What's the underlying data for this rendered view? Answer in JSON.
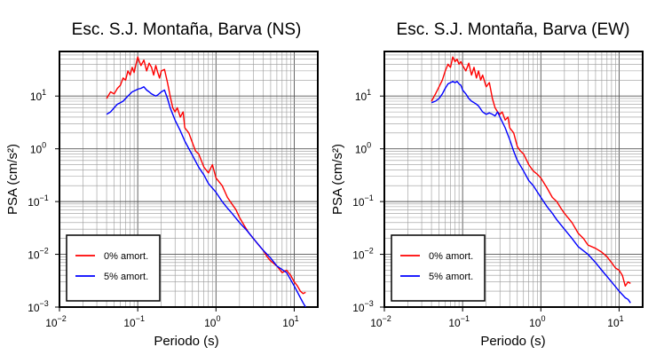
{
  "chart_data": [
    {
      "type": "line",
      "title": "Esc. S.J. Montaña, Barva (NS)",
      "xlabel": "Periodo (s)",
      "ylabel": "PSA (cm/s²)",
      "xscale": "log",
      "yscale": "log",
      "xlim": [
        0.01,
        20
      ],
      "ylim": [
        0.001,
        70
      ],
      "x_ticks": [
        {
          "base": "10",
          "exp": "−2",
          "value": 0.01
        },
        {
          "base": "10",
          "exp": "−1",
          "value": 0.1
        },
        {
          "base": "10",
          "exp": "0",
          "value": 1
        },
        {
          "base": "10",
          "exp": "1",
          "value": 10
        }
      ],
      "y_ticks": [
        {
          "base": "10",
          "exp": "−3",
          "value": 0.001
        },
        {
          "base": "10",
          "exp": "−2",
          "value": 0.01
        },
        {
          "base": "10",
          "exp": "−1",
          "value": 0.1
        },
        {
          "base": "10",
          "exp": "0",
          "value": 1
        },
        {
          "base": "10",
          "exp": "1",
          "value": 10
        }
      ],
      "grid": true,
      "legend_position": "bottom-left",
      "series": [
        {
          "name": "0% amort.",
          "color": "#ff0000",
          "x": [
            0.04,
            0.045,
            0.05,
            0.055,
            0.06,
            0.065,
            0.07,
            0.075,
            0.08,
            0.085,
            0.09,
            0.095,
            0.1,
            0.105,
            0.11,
            0.12,
            0.13,
            0.14,
            0.15,
            0.16,
            0.17,
            0.18,
            0.19,
            0.2,
            0.22,
            0.24,
            0.26,
            0.28,
            0.3,
            0.32,
            0.35,
            0.38,
            0.4,
            0.45,
            0.5,
            0.55,
            0.6,
            0.7,
            0.8,
            0.9,
            1.0,
            1.2,
            1.4,
            1.6,
            1.8,
            2.0,
            2.3,
            2.6,
            3.0,
            3.5,
            4.0,
            4.5,
            5.0,
            6.0,
            7.0,
            8.0,
            9.0,
            10.0,
            11.0,
            12.0,
            13.0,
            14.0
          ],
          "y": [
            9,
            12,
            11,
            14,
            16,
            22,
            20,
            30,
            25,
            35,
            28,
            40,
            55,
            45,
            38,
            48,
            30,
            42,
            35,
            25,
            38,
            28,
            22,
            30,
            32,
            18,
            10,
            6,
            5,
            6,
            4,
            5,
            2.5,
            2.0,
            1.3,
            0.9,
            0.8,
            0.45,
            0.35,
            0.5,
            0.28,
            0.2,
            0.12,
            0.09,
            0.07,
            0.05,
            0.035,
            0.026,
            0.02,
            0.015,
            0.012,
            0.009,
            0.0075,
            0.006,
            0.0045,
            0.005,
            0.004,
            0.003,
            0.0025,
            0.002,
            0.0018,
            0.0019
          ]
        },
        {
          "name": "5% amort.",
          "color": "#0000ff",
          "x": [
            0.04,
            0.045,
            0.05,
            0.055,
            0.06,
            0.065,
            0.07,
            0.075,
            0.08,
            0.085,
            0.09,
            0.095,
            0.1,
            0.11,
            0.12,
            0.13,
            0.14,
            0.15,
            0.16,
            0.17,
            0.18,
            0.2,
            0.22,
            0.24,
            0.26,
            0.28,
            0.3,
            0.35,
            0.4,
            0.5,
            0.6,
            0.7,
            0.8,
            1.0,
            1.2,
            1.4,
            1.6,
            2.0,
            2.5,
            3.0,
            4.0,
            5.0,
            6.0,
            8.0,
            10.0,
            12.0,
            13.0,
            14.0
          ],
          "y": [
            4.5,
            5,
            6,
            7,
            7.5,
            8,
            9,
            10,
            11,
            12,
            12.5,
            13,
            13.5,
            14,
            15,
            13,
            12,
            11,
            10.5,
            10,
            10.5,
            12,
            13,
            9,
            6,
            4.5,
            3.5,
            2.2,
            1.4,
            0.75,
            0.45,
            0.32,
            0.22,
            0.15,
            0.1,
            0.075,
            0.06,
            0.04,
            0.028,
            0.02,
            0.012,
            0.0085,
            0.006,
            0.0045,
            0.0025,
            0.0015,
            0.0012,
            0.001
          ]
        }
      ]
    },
    {
      "type": "line",
      "title": "Esc. S.J. Montaña, Barva (EW)",
      "xlabel": "Periodo (s)",
      "ylabel": "PSA (cm/s²)",
      "xscale": "log",
      "yscale": "log",
      "xlim": [
        0.01,
        20
      ],
      "ylim": [
        0.001,
        70
      ],
      "x_ticks": [
        {
          "base": "10",
          "exp": "−2",
          "value": 0.01
        },
        {
          "base": "10",
          "exp": "−1",
          "value": 0.1
        },
        {
          "base": "10",
          "exp": "0",
          "value": 1
        },
        {
          "base": "10",
          "exp": "1",
          "value": 10
        }
      ],
      "y_ticks": [
        {
          "base": "10",
          "exp": "−3",
          "value": 0.001
        },
        {
          "base": "10",
          "exp": "−2",
          "value": 0.01
        },
        {
          "base": "10",
          "exp": "−1",
          "value": 0.1
        },
        {
          "base": "10",
          "exp": "0",
          "value": 1
        },
        {
          "base": "10",
          "exp": "1",
          "value": 10
        }
      ],
      "grid": true,
      "legend_position": "bottom-left",
      "series": [
        {
          "name": "0% amort.",
          "color": "#ff0000",
          "x": [
            0.04,
            0.045,
            0.05,
            0.055,
            0.06,
            0.065,
            0.07,
            0.075,
            0.08,
            0.085,
            0.09,
            0.095,
            0.1,
            0.11,
            0.12,
            0.13,
            0.14,
            0.15,
            0.16,
            0.17,
            0.18,
            0.2,
            0.22,
            0.24,
            0.26,
            0.28,
            0.3,
            0.32,
            0.35,
            0.38,
            0.4,
            0.45,
            0.5,
            0.55,
            0.6,
            0.7,
            0.8,
            0.9,
            1.0,
            1.2,
            1.4,
            1.6,
            1.8,
            2.0,
            2.5,
            3.0,
            3.5,
            4.0,
            5.0,
            6.0,
            7.0,
            8.0,
            9.0,
            10.0,
            11.0,
            12.0,
            13.0,
            14.0
          ],
          "y": [
            8,
            11,
            15,
            20,
            30,
            40,
            35,
            55,
            45,
            50,
            40,
            45,
            38,
            30,
            42,
            25,
            35,
            22,
            30,
            20,
            25,
            15,
            18,
            9,
            6,
            5,
            4.5,
            5,
            3.5,
            4,
            2.5,
            2,
            1.1,
            0.9,
            0.8,
            0.5,
            0.38,
            0.33,
            0.28,
            0.18,
            0.12,
            0.1,
            0.075,
            0.06,
            0.04,
            0.025,
            0.02,
            0.015,
            0.013,
            0.011,
            0.009,
            0.007,
            0.0055,
            0.005,
            0.004,
            0.0025,
            0.003,
            0.0028
          ]
        },
        {
          "name": "5% amort.",
          "color": "#0000ff",
          "x": [
            0.04,
            0.045,
            0.05,
            0.055,
            0.06,
            0.065,
            0.07,
            0.075,
            0.08,
            0.085,
            0.09,
            0.095,
            0.1,
            0.11,
            0.12,
            0.13,
            0.14,
            0.15,
            0.16,
            0.18,
            0.2,
            0.22,
            0.24,
            0.26,
            0.28,
            0.3,
            0.35,
            0.4,
            0.45,
            0.5,
            0.6,
            0.7,
            0.8,
            1.0,
            1.2,
            1.4,
            1.6,
            2.0,
            2.5,
            3.0,
            4.0,
            5.0,
            6.0,
            8.0,
            10.0,
            12.0,
            13.0,
            14.0
          ],
          "y": [
            7.5,
            8,
            9,
            11,
            14,
            17,
            18,
            19,
            18,
            19,
            17,
            16,
            13,
            11,
            9,
            8,
            7.5,
            7,
            6.5,
            5,
            4.5,
            4.8,
            4.5,
            4.2,
            5,
            4,
            2.5,
            1.5,
            0.9,
            0.6,
            0.38,
            0.25,
            0.2,
            0.12,
            0.08,
            0.06,
            0.045,
            0.03,
            0.02,
            0.014,
            0.01,
            0.007,
            0.005,
            0.003,
            0.002,
            0.0015,
            0.0014,
            0.0012
          ]
        }
      ]
    }
  ]
}
